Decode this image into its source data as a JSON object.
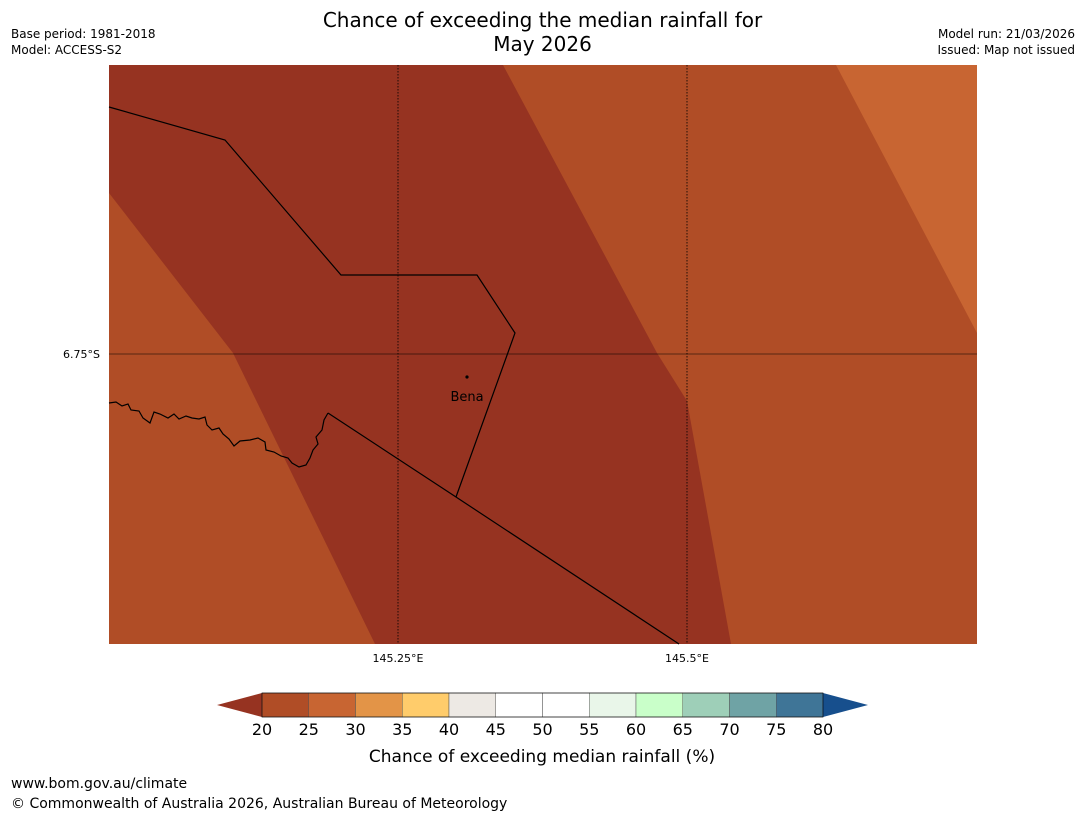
{
  "header": {
    "title_line1": "Chance of exceeding the median rainfall for",
    "title_line2": "May 2026",
    "base_period": "Base period: 1981-2018",
    "model": "Model: ACCESS-S2",
    "model_run": "Model run: 21/03/2026",
    "issued": "Issued: Map not issued"
  },
  "map": {
    "lat_label": "6.75°S",
    "lon_labels": [
      "145.25°E",
      "145.5°E"
    ],
    "place_name": "Bena",
    "band_colors": {
      "band_20_25": "#963321",
      "band_25_30": "#B04D26",
      "band_30_35": "#C86532"
    }
  },
  "colorbar": {
    "title": "Chance of exceeding median rainfall (%)",
    "ticks": [
      "20",
      "25",
      "30",
      "35",
      "40",
      "45",
      "50",
      "55",
      "60",
      "65",
      "70",
      "75",
      "80"
    ],
    "under_color": "#963321",
    "colors": [
      "#B04D26",
      "#C86532",
      "#E39447",
      "#FFCC6B",
      "#EDE9E4",
      "#FFFFFF",
      "#FFFFFF",
      "#E9F6E9",
      "#C9FFC9",
      "#9ECFB8",
      "#6FA3A5",
      "#3F7597"
    ],
    "over_color": "#174F8D"
  },
  "footer": {
    "url": "www.bom.gov.au/climate",
    "copyright": "© Commonwealth of Australia 2026, Australian Bureau of Meteorology"
  }
}
